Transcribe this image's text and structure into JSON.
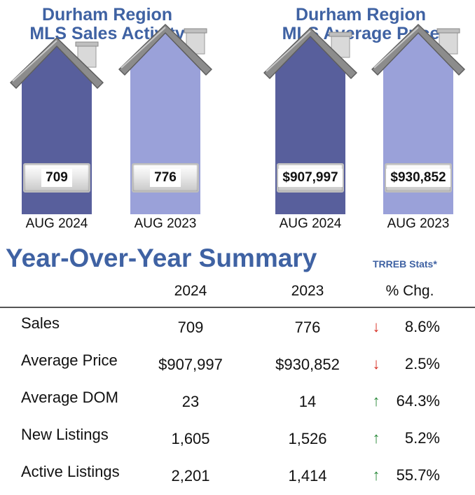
{
  "chart_data": [
    {
      "type": "bar",
      "title": "Durham Region\nMLS Sales Activity",
      "title_lines": [
        "Durham Region",
        "MLS Sales Activity"
      ],
      "categories": [
        "AUG 2024",
        "AUG 2023"
      ],
      "values": [
        709,
        776
      ],
      "value_labels": [
        "709",
        "776"
      ],
      "colors": [
        "#585f9c",
        "#9aa1d9"
      ]
    },
    {
      "type": "bar",
      "title": "Durham Region\nMLS Average Price",
      "title_lines": [
        "Durham Region",
        "MLS Average Price"
      ],
      "categories": [
        "AUG 2024",
        "AUG 2023"
      ],
      "values": [
        907997,
        930852
      ],
      "value_labels": [
        "$907,997",
        "$930,852"
      ],
      "colors": [
        "#585f9c",
        "#9aa1d9"
      ]
    }
  ],
  "summary": {
    "title": "Year-Over-Year Summary",
    "source": "TRREB  Stats*",
    "columns": [
      "2024",
      "2023",
      "% Chg."
    ],
    "rows": [
      {
        "label": "Sales",
        "v2024": "709",
        "v2023": "776",
        "direction": "down",
        "change": "8.6%"
      },
      {
        "label": "Average Price",
        "v2024": "$907,997",
        "v2023": "$930,852",
        "direction": "down",
        "change": "2.5%"
      },
      {
        "label": "Average DOM",
        "v2024": "23",
        "v2023": "14",
        "direction": "up",
        "change": "64.3%"
      },
      {
        "label": "New Listings",
        "v2024": "1,605",
        "v2023": "1,526",
        "direction": "up",
        "change": "5.2%"
      },
      {
        "label": "Active Listings",
        "v2024": "2,201",
        "v2023": "1,414",
        "direction": "up",
        "change": "55.7%"
      }
    ],
    "colors": {
      "down": "#d62a1e",
      "up": "#2a8a3a",
      "accent": "#3f62a3"
    }
  }
}
